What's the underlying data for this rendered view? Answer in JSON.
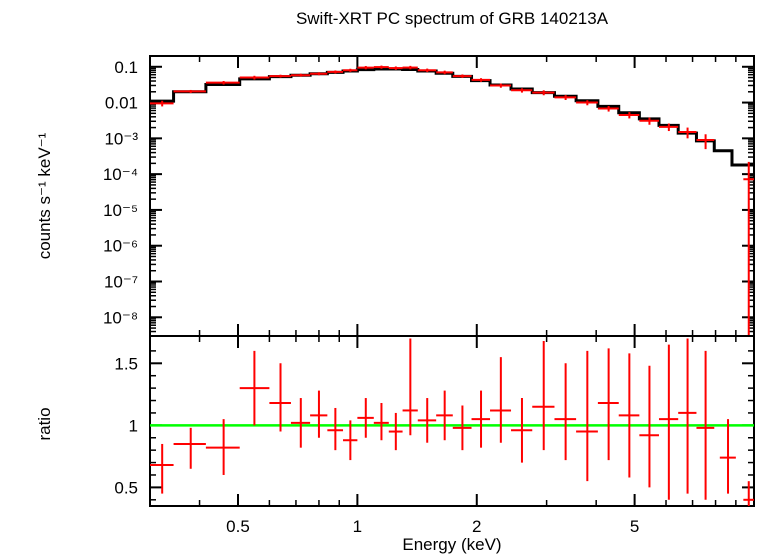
{
  "chart_data": [
    {
      "type": "scatter",
      "title": "Swift-XRT PC spectrum of GRB 140213A",
      "ylabel": "counts s⁻¹ keV⁻¹",
      "xlabel": "",
      "xscale": "log",
      "yscale": "log",
      "xlim": [
        0.3,
        10
      ],
      "ylim": [
        3e-09,
        0.2
      ],
      "x_ticks": [],
      "y_ticks": [
        {
          "value": 0.1,
          "label": "0.1"
        },
        {
          "value": 0.01,
          "label": "0.01"
        },
        {
          "value": 0.001,
          "label": "10⁻³"
        },
        {
          "value": 0.0001,
          "label": "10⁻⁴"
        },
        {
          "value": 1e-05,
          "label": "10⁻⁵"
        },
        {
          "value": 1e-06,
          "label": "10⁻⁶"
        },
        {
          "value": 1e-07,
          "label": "10⁻⁷"
        },
        {
          "value": 1e-08,
          "label": "10⁻⁸"
        }
      ],
      "series": [
        {
          "name": "",
          "kind": "data_with_errors",
          "color": "#ff0000",
          "points": [
            {
              "x": 0.322,
              "xlo": 0.3,
              "xhi": 0.344,
              "y": 0.0095,
              "ylo": 0.0078,
              "yhi": 0.0112
            },
            {
              "x": 0.38,
              "xlo": 0.344,
              "xhi": 0.415,
              "y": 0.0205,
              "ylo": 0.0185,
              "yhi": 0.0225
            },
            {
              "x": 0.46,
              "xlo": 0.415,
              "xhi": 0.505,
              "y": 0.036,
              "ylo": 0.032,
              "yhi": 0.04
            },
            {
              "x": 0.55,
              "xlo": 0.505,
              "xhi": 0.6,
              "y": 0.05,
              "ylo": 0.044,
              "yhi": 0.056
            },
            {
              "x": 0.64,
              "xlo": 0.6,
              "xhi": 0.68,
              "y": 0.055,
              "ylo": 0.05,
              "yhi": 0.06
            },
            {
              "x": 0.72,
              "xlo": 0.68,
              "xhi": 0.76,
              "y": 0.058,
              "ylo": 0.053,
              "yhi": 0.064
            },
            {
              "x": 0.8,
              "xlo": 0.76,
              "xhi": 0.84,
              "y": 0.064,
              "ylo": 0.058,
              "yhi": 0.07
            },
            {
              "x": 0.88,
              "xlo": 0.84,
              "xhi": 0.92,
              "y": 0.072,
              "ylo": 0.065,
              "yhi": 0.079
            },
            {
              "x": 0.96,
              "xlo": 0.92,
              "xhi": 1.0,
              "y": 0.08,
              "ylo": 0.072,
              "yhi": 0.088
            },
            {
              "x": 1.05,
              "xlo": 1.0,
              "xhi": 1.1,
              "y": 0.095,
              "ylo": 0.085,
              "yhi": 0.105
            },
            {
              "x": 1.15,
              "xlo": 1.1,
              "xhi": 1.2,
              "y": 0.098,
              "ylo": 0.088,
              "yhi": 0.108
            },
            {
              "x": 1.25,
              "xlo": 1.2,
              "xhi": 1.3,
              "y": 0.092,
              "ylo": 0.082,
              "yhi": 0.102
            },
            {
              "x": 1.36,
              "xlo": 1.3,
              "xhi": 1.42,
              "y": 0.095,
              "ylo": 0.085,
              "yhi": 0.106
            },
            {
              "x": 1.5,
              "xlo": 1.42,
              "xhi": 1.58,
              "y": 0.08,
              "ylo": 0.071,
              "yhi": 0.089
            },
            {
              "x": 1.66,
              "xlo": 1.58,
              "xhi": 1.74,
              "y": 0.07,
              "ylo": 0.062,
              "yhi": 0.078
            },
            {
              "x": 1.84,
              "xlo": 1.74,
              "xhi": 1.94,
              "y": 0.055,
              "ylo": 0.049,
              "yhi": 0.061
            },
            {
              "x": 2.05,
              "xlo": 1.94,
              "xhi": 2.16,
              "y": 0.043,
              "ylo": 0.038,
              "yhi": 0.048
            },
            {
              "x": 2.3,
              "xlo": 2.16,
              "xhi": 2.44,
              "y": 0.03,
              "ylo": 0.026,
              "yhi": 0.034
            },
            {
              "x": 2.6,
              "xlo": 2.44,
              "xhi": 2.76,
              "y": 0.022,
              "ylo": 0.019,
              "yhi": 0.025
            },
            {
              "x": 2.95,
              "xlo": 2.76,
              "xhi": 3.14,
              "y": 0.019,
              "ylo": 0.016,
              "yhi": 0.022
            },
            {
              "x": 3.35,
              "xlo": 3.14,
              "xhi": 3.56,
              "y": 0.014,
              "ylo": 0.0118,
              "yhi": 0.0162
            },
            {
              "x": 3.8,
              "xlo": 3.56,
              "xhi": 4.04,
              "y": 0.01,
              "ylo": 0.0084,
              "yhi": 0.0116
            },
            {
              "x": 4.3,
              "xlo": 4.04,
              "xhi": 4.56,
              "y": 0.0068,
              "ylo": 0.0056,
              "yhi": 0.008
            },
            {
              "x": 4.85,
              "xlo": 4.56,
              "xhi": 5.14,
              "y": 0.0045,
              "ylo": 0.0036,
              "yhi": 0.0054
            },
            {
              "x": 5.45,
              "xlo": 5.14,
              "xhi": 5.76,
              "y": 0.0031,
              "ylo": 0.0024,
              "yhi": 0.0038
            },
            {
              "x": 6.1,
              "xlo": 5.76,
              "xhi": 6.44,
              "y": 0.0021,
              "ylo": 0.0016,
              "yhi": 0.0026
            },
            {
              "x": 6.8,
              "xlo": 6.44,
              "xhi": 7.16,
              "y": 0.0015,
              "ylo": 0.001,
              "yhi": 0.002
            },
            {
              "x": 7.55,
              "xlo": 7.16,
              "xhi": 7.94,
              "y": 0.0009,
              "ylo": 0.0005,
              "yhi": 0.0013
            },
            {
              "x": 9.7,
              "xlo": 9.4,
              "xhi": 10.0,
              "y": 7.2e-05,
              "ylo": 3e-09,
              "yhi": 0.00022
            }
          ]
        },
        {
          "name": "",
          "kind": "model_step",
          "color": "#000000",
          "steps": [
            {
              "xlo": 0.3,
              "xhi": 0.344,
              "y": 0.011
            },
            {
              "xlo": 0.344,
              "xhi": 0.415,
              "y": 0.02
            },
            {
              "xlo": 0.415,
              "xhi": 0.505,
              "y": 0.032
            },
            {
              "xlo": 0.505,
              "xhi": 0.6,
              "y": 0.046
            },
            {
              "xlo": 0.6,
              "xhi": 0.68,
              "y": 0.053
            },
            {
              "xlo": 0.68,
              "xhi": 0.76,
              "y": 0.058
            },
            {
              "xlo": 0.76,
              "xhi": 0.84,
              "y": 0.064
            },
            {
              "xlo": 0.84,
              "xhi": 0.92,
              "y": 0.07
            },
            {
              "xlo": 0.92,
              "xhi": 1.0,
              "y": 0.076
            },
            {
              "xlo": 1.0,
              "xhi": 1.1,
              "y": 0.083
            },
            {
              "xlo": 1.1,
              "xhi": 1.2,
              "y": 0.087
            },
            {
              "xlo": 1.2,
              "xhi": 1.3,
              "y": 0.087
            },
            {
              "xlo": 1.3,
              "xhi": 1.42,
              "y": 0.084
            },
            {
              "xlo": 1.42,
              "xhi": 1.58,
              "y": 0.076
            },
            {
              "xlo": 1.58,
              "xhi": 1.74,
              "y": 0.066
            },
            {
              "xlo": 1.74,
              "xhi": 1.94,
              "y": 0.054
            },
            {
              "xlo": 1.94,
              "xhi": 2.16,
              "y": 0.041
            },
            {
              "xlo": 2.16,
              "xhi": 2.44,
              "y": 0.031
            },
            {
              "xlo": 2.44,
              "xhi": 2.76,
              "y": 0.024
            },
            {
              "xlo": 2.76,
              "xhi": 3.14,
              "y": 0.019
            },
            {
              "xlo": 3.14,
              "xhi": 3.56,
              "y": 0.015
            },
            {
              "xlo": 3.56,
              "xhi": 4.04,
              "y": 0.0112
            },
            {
              "xlo": 4.04,
              "xhi": 4.56,
              "y": 0.0078
            },
            {
              "xlo": 4.56,
              "xhi": 5.14,
              "y": 0.0052
            },
            {
              "xlo": 5.14,
              "xhi": 5.76,
              "y": 0.0035
            },
            {
              "xlo": 5.76,
              "xhi": 6.44,
              "y": 0.0023
            },
            {
              "xlo": 6.44,
              "xhi": 7.16,
              "y": 0.0014
            },
            {
              "xlo": 7.16,
              "xhi": 7.94,
              "y": 0.00085
            },
            {
              "xlo": 7.94,
              "xhi": 8.8,
              "y": 0.00045
            },
            {
              "xlo": 8.8,
              "xhi": 10.0,
              "y": 0.00018
            }
          ]
        }
      ]
    },
    {
      "type": "scatter",
      "title": "",
      "ylabel": "ratio",
      "xlabel": "Energy (keV)",
      "xscale": "log",
      "yscale": "linear",
      "xlim": [
        0.3,
        10
      ],
      "ylim": [
        0.35,
        1.72
      ],
      "x_ticks": [
        {
          "value": 0.5,
          "label": "0.5"
        },
        {
          "value": 1,
          "label": "1"
        },
        {
          "value": 2,
          "label": "2"
        },
        {
          "value": 5,
          "label": "5"
        }
      ],
      "y_ticks": [
        {
          "value": 0.5,
          "label": "0.5"
        },
        {
          "value": 1,
          "label": "1"
        },
        {
          "value": 1.5,
          "label": "1.5"
        }
      ],
      "reference_line": {
        "y": 1,
        "color": "#00ff00"
      },
      "series": [
        {
          "name": "",
          "kind": "ratio_with_errors",
          "color": "#ff0000",
          "points": [
            {
              "x": 0.322,
              "xlo": 0.3,
              "xhi": 0.344,
              "y": 0.68,
              "ylo": 0.45,
              "yhi": 0.85
            },
            {
              "x": 0.38,
              "xlo": 0.344,
              "xhi": 0.415,
              "y": 0.85,
              "ylo": 0.65,
              "yhi": 0.98
            },
            {
              "x": 0.46,
              "xlo": 0.415,
              "xhi": 0.505,
              "y": 0.82,
              "ylo": 0.6,
              "yhi": 1.05
            },
            {
              "x": 0.55,
              "xlo": 0.505,
              "xhi": 0.6,
              "y": 1.3,
              "ylo": 1.0,
              "yhi": 1.6
            },
            {
              "x": 0.64,
              "xlo": 0.6,
              "xhi": 0.68,
              "y": 1.18,
              "ylo": 0.95,
              "yhi": 1.5
            },
            {
              "x": 0.72,
              "xlo": 0.68,
              "xhi": 0.76,
              "y": 1.02,
              "ylo": 0.82,
              "yhi": 1.22
            },
            {
              "x": 0.8,
              "xlo": 0.76,
              "xhi": 0.84,
              "y": 1.08,
              "ylo": 0.9,
              "yhi": 1.28
            },
            {
              "x": 0.88,
              "xlo": 0.84,
              "xhi": 0.92,
              "y": 0.96,
              "ylo": 0.8,
              "yhi": 1.14
            },
            {
              "x": 0.96,
              "xlo": 0.92,
              "xhi": 1.0,
              "y": 0.88,
              "ylo": 0.72,
              "yhi": 1.04
            },
            {
              "x": 1.05,
              "xlo": 1.0,
              "xhi": 1.1,
              "y": 1.06,
              "ylo": 0.9,
              "yhi": 1.22
            },
            {
              "x": 1.15,
              "xlo": 1.1,
              "xhi": 1.2,
              "y": 1.02,
              "ylo": 0.88,
              "yhi": 1.18
            },
            {
              "x": 1.25,
              "xlo": 1.2,
              "xhi": 1.3,
              "y": 0.95,
              "ylo": 0.8,
              "yhi": 1.1
            },
            {
              "x": 1.36,
              "xlo": 1.3,
              "xhi": 1.42,
              "y": 1.12,
              "ylo": 0.92,
              "yhi": 1.7
            },
            {
              "x": 1.5,
              "xlo": 1.42,
              "xhi": 1.58,
              "y": 1.04,
              "ylo": 0.86,
              "yhi": 1.22
            },
            {
              "x": 1.66,
              "xlo": 1.58,
              "xhi": 1.74,
              "y": 1.08,
              "ylo": 0.88,
              "yhi": 1.28
            },
            {
              "x": 1.84,
              "xlo": 1.74,
              "xhi": 1.94,
              "y": 0.98,
              "ylo": 0.8,
              "yhi": 1.16
            },
            {
              "x": 2.05,
              "xlo": 1.94,
              "xhi": 2.16,
              "y": 1.05,
              "ylo": 0.82,
              "yhi": 1.28
            },
            {
              "x": 2.3,
              "xlo": 2.16,
              "xhi": 2.44,
              "y": 1.12,
              "ylo": 0.86,
              "yhi": 1.55
            },
            {
              "x": 2.6,
              "xlo": 2.44,
              "xhi": 2.76,
              "y": 0.96,
              "ylo": 0.7,
              "yhi": 1.22
            },
            {
              "x": 2.95,
              "xlo": 2.76,
              "xhi": 3.14,
              "y": 1.15,
              "ylo": 0.8,
              "yhi": 1.68
            },
            {
              "x": 3.35,
              "xlo": 3.14,
              "xhi": 3.56,
              "y": 1.05,
              "ylo": 0.72,
              "yhi": 1.5
            },
            {
              "x": 3.8,
              "xlo": 3.56,
              "xhi": 4.04,
              "y": 0.95,
              "ylo": 0.55,
              "yhi": 1.6
            },
            {
              "x": 4.3,
              "xlo": 4.04,
              "xhi": 4.56,
              "y": 1.18,
              "ylo": 0.72,
              "yhi": 1.62
            },
            {
              "x": 4.85,
              "xlo": 4.56,
              "xhi": 5.14,
              "y": 1.08,
              "ylo": 0.58,
              "yhi": 1.58
            },
            {
              "x": 5.45,
              "xlo": 5.14,
              "xhi": 5.76,
              "y": 0.92,
              "ylo": 0.5,
              "yhi": 1.48
            },
            {
              "x": 6.1,
              "xlo": 5.76,
              "xhi": 6.44,
              "y": 1.05,
              "ylo": 0.4,
              "yhi": 1.65
            },
            {
              "x": 6.8,
              "xlo": 6.44,
              "xhi": 7.16,
              "y": 1.1,
              "ylo": 0.45,
              "yhi": 1.7
            },
            {
              "x": 7.55,
              "xlo": 7.16,
              "xhi": 7.94,
              "y": 0.98,
              "ylo": 0.4,
              "yhi": 1.6
            },
            {
              "x": 8.6,
              "xlo": 8.2,
              "xhi": 9.0,
              "y": 0.74,
              "ylo": 0.45,
              "yhi": 1.05
            },
            {
              "x": 9.7,
              "xlo": 9.4,
              "xhi": 10.0,
              "y": 0.4,
              "ylo": 0.35,
              "yhi": 0.55
            }
          ]
        }
      ]
    }
  ]
}
